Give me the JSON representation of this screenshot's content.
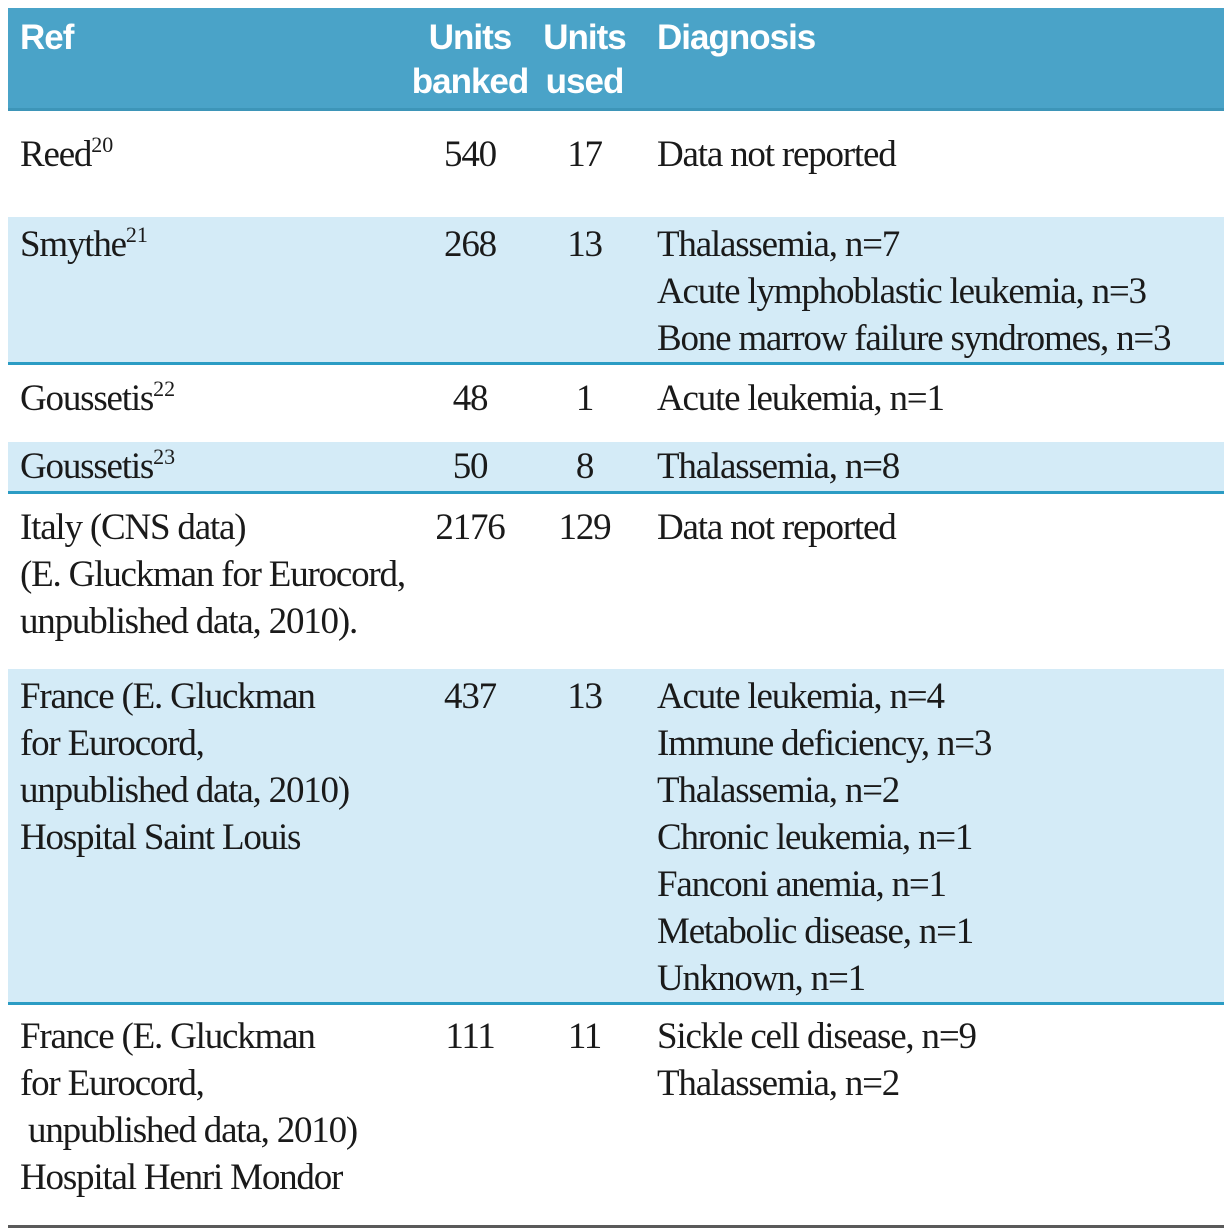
{
  "colors": {
    "header_bg": "#4aa3c8",
    "header_text": "#ffffff",
    "shaded_row_bg": "#d4ebf7",
    "shaded_row_divider": "#2b9cc4",
    "bottom_rule": "#5a5a5a",
    "body_text": "#1a1a1a"
  },
  "table": {
    "headers": {
      "ref": "Ref",
      "units_banked": "Units\nbanked",
      "units_used": "Units\nused",
      "diagnosis": "Diagnosis"
    },
    "rows": [
      {
        "ref_name": "Reed",
        "ref_sup": "20",
        "ref_extra": "",
        "units_banked": "540",
        "units_used": "17",
        "diagnosis": "Data not reported"
      },
      {
        "ref_name": "Smythe",
        "ref_sup": "21",
        "ref_extra": "",
        "units_banked": "268",
        "units_used": "13",
        "diagnosis": "Thalassemia, n=7\nAcute lymphoblastic leukemia, n=3\nBone marrow failure syndromes, n=3"
      },
      {
        "ref_name": "Goussetis",
        "ref_sup": "22",
        "ref_extra": "",
        "units_banked": "48",
        "units_used": "1",
        "diagnosis": "Acute leukemia, n=1"
      },
      {
        "ref_name": "Goussetis",
        "ref_sup": "23",
        "ref_extra": "",
        "units_banked": "50",
        "units_used": "8",
        "diagnosis": "Thalassemia, n=8"
      },
      {
        "ref_name": "Italy (CNS data)",
        "ref_sup": "",
        "ref_extra": "(E. Gluckman for Eurocord,\nunpublished data, 2010).",
        "units_banked": "2176",
        "units_used": "129",
        "diagnosis": "Data not reported"
      },
      {
        "ref_name": "France (E. Gluckman",
        "ref_sup": "",
        "ref_extra": "for Eurocord,\nunpublished data, 2010)\nHospital Saint Louis",
        "units_banked": "437",
        "units_used": "13",
        "diagnosis": "Acute leukemia, n=4\nImmune deficiency, n=3\nThalassemia, n=2\nChronic leukemia, n=1\nFanconi anemia, n=1\nMetabolic disease, n=1\nUnknown, n=1"
      },
      {
        "ref_name": "France (E. Gluckman",
        "ref_sup": "",
        "ref_extra": "for Eurocord,\n unpublished data, 2010)\nHospital Henri Mondor",
        "units_banked": "111",
        "units_used": "11",
        "diagnosis": "Sickle cell disease, n=9\nThalassemia, n=2"
      }
    ]
  }
}
